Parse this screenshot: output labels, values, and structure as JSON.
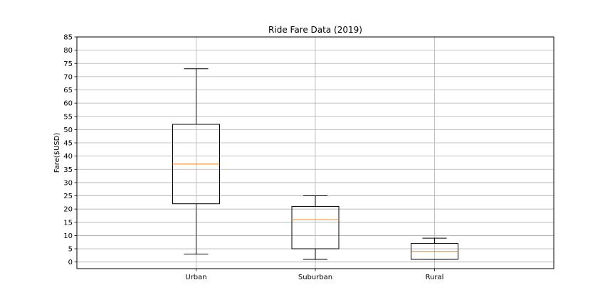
{
  "chart_data": {
    "type": "box",
    "title": "Ride Fare Data (2019)",
    "xlabel": "",
    "ylabel": "Fare($USD)",
    "ylim": [
      -2.5,
      85
    ],
    "yticks": [
      0,
      5,
      10,
      15,
      20,
      25,
      30,
      35,
      40,
      45,
      50,
      55,
      60,
      65,
      70,
      75,
      80,
      85
    ],
    "grid": true,
    "categories": [
      "Urban",
      "Suburban",
      "Rural"
    ],
    "boxes": [
      {
        "category": "Urban",
        "whisker_low": 3,
        "q1": 22,
        "median": 37,
        "q3": 52,
        "whisker_high": 73
      },
      {
        "category": "Suburban",
        "whisker_low": 1,
        "q1": 5,
        "median": 16,
        "q3": 21,
        "whisker_high": 25
      },
      {
        "category": "Rural",
        "whisker_low": 1,
        "q1": 1,
        "median": 4,
        "q3": 7,
        "whisker_high": 9
      }
    ],
    "colors": {
      "box": "#000000",
      "median": "#ff7f0e",
      "grid": "#b0b0b0"
    }
  }
}
